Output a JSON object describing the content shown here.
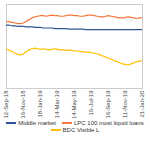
{
  "chart_data": {
    "type": "line",
    "categories": [
      "12-Sep-18",
      null,
      null,
      null,
      null,
      null,
      "16-Nov-18",
      null,
      null,
      null,
      null,
      null,
      "18-Jan-19",
      null,
      null,
      null,
      null,
      null,
      "14-Mar-19",
      null,
      null,
      null,
      null,
      null,
      "14-May-19",
      null,
      null,
      null,
      null,
      null,
      "16-Jul-19",
      null,
      null,
      null,
      null,
      null,
      "16-Sep-19",
      null,
      null,
      null,
      null,
      null,
      "11-Nov-19",
      null,
      null,
      null,
      null,
      null,
      "21-Jan-20"
    ],
    "series": [
      {
        "name": "Middle market",
        "color": "#2f5597",
        "values": [
          96.3,
          96.3,
          96.2,
          96.2,
          96.1,
          96.1,
          96.1,
          96.0,
          96.0,
          96.0,
          95.9,
          95.9,
          95.9,
          95.8,
          95.8,
          95.8,
          95.8,
          95.7,
          95.7,
          95.7,
          95.7,
          95.7,
          95.6,
          95.6,
          95.6,
          95.6,
          95.6,
          95.6,
          95.5,
          95.5,
          95.5,
          95.5,
          95.5,
          95.5,
          95.5,
          95.5,
          95.5,
          95.5,
          95.5,
          95.5,
          95.5,
          95.5,
          95.5,
          95.5,
          95.5,
          95.5,
          95.5,
          95.5,
          95.5
        ]
      },
      {
        "name": "LPC 100 most liquid loans",
        "color": "#f4793b",
        "values": [
          97.0,
          96.9,
          96.8,
          96.7,
          96.6,
          96.6,
          96.7,
          97.0,
          97.3,
          97.6,
          97.8,
          97.9,
          98.0,
          98.0,
          97.9,
          98.0,
          98.1,
          98.0,
          98.0,
          97.9,
          97.9,
          98.0,
          98.1,
          98.1,
          98.0,
          98.0,
          97.9,
          97.9,
          98.0,
          98.1,
          98.1,
          98.0,
          97.9,
          97.8,
          97.8,
          97.9,
          98.0,
          97.9,
          97.8,
          97.7,
          97.6,
          97.6,
          97.7,
          97.8,
          97.7,
          97.6,
          97.5,
          97.6,
          97.6
        ]
      },
      {
        "name": "BDC Visible L",
        "color": "#ffc000",
        "values": [
          92.0,
          91.8,
          91.6,
          91.3,
          91.1,
          91.0,
          91.2,
          91.6,
          91.9,
          92.1,
          92.2,
          92.1,
          92.0,
          92.1,
          92.0,
          91.9,
          92.0,
          92.1,
          92.0,
          91.9,
          91.9,
          91.8,
          91.9,
          91.8,
          91.7,
          91.7,
          91.6,
          91.6,
          91.5,
          91.5,
          91.4,
          91.3,
          91.2,
          91.0,
          90.8,
          90.6,
          90.4,
          90.2,
          90.0,
          89.8,
          89.6,
          89.4,
          89.3,
          89.2,
          89.4,
          89.6,
          89.8,
          89.9,
          90.0
        ]
      }
    ],
    "ylim": [
      85,
      100
    ],
    "tick_labels": "x",
    "legend": "bottom"
  }
}
